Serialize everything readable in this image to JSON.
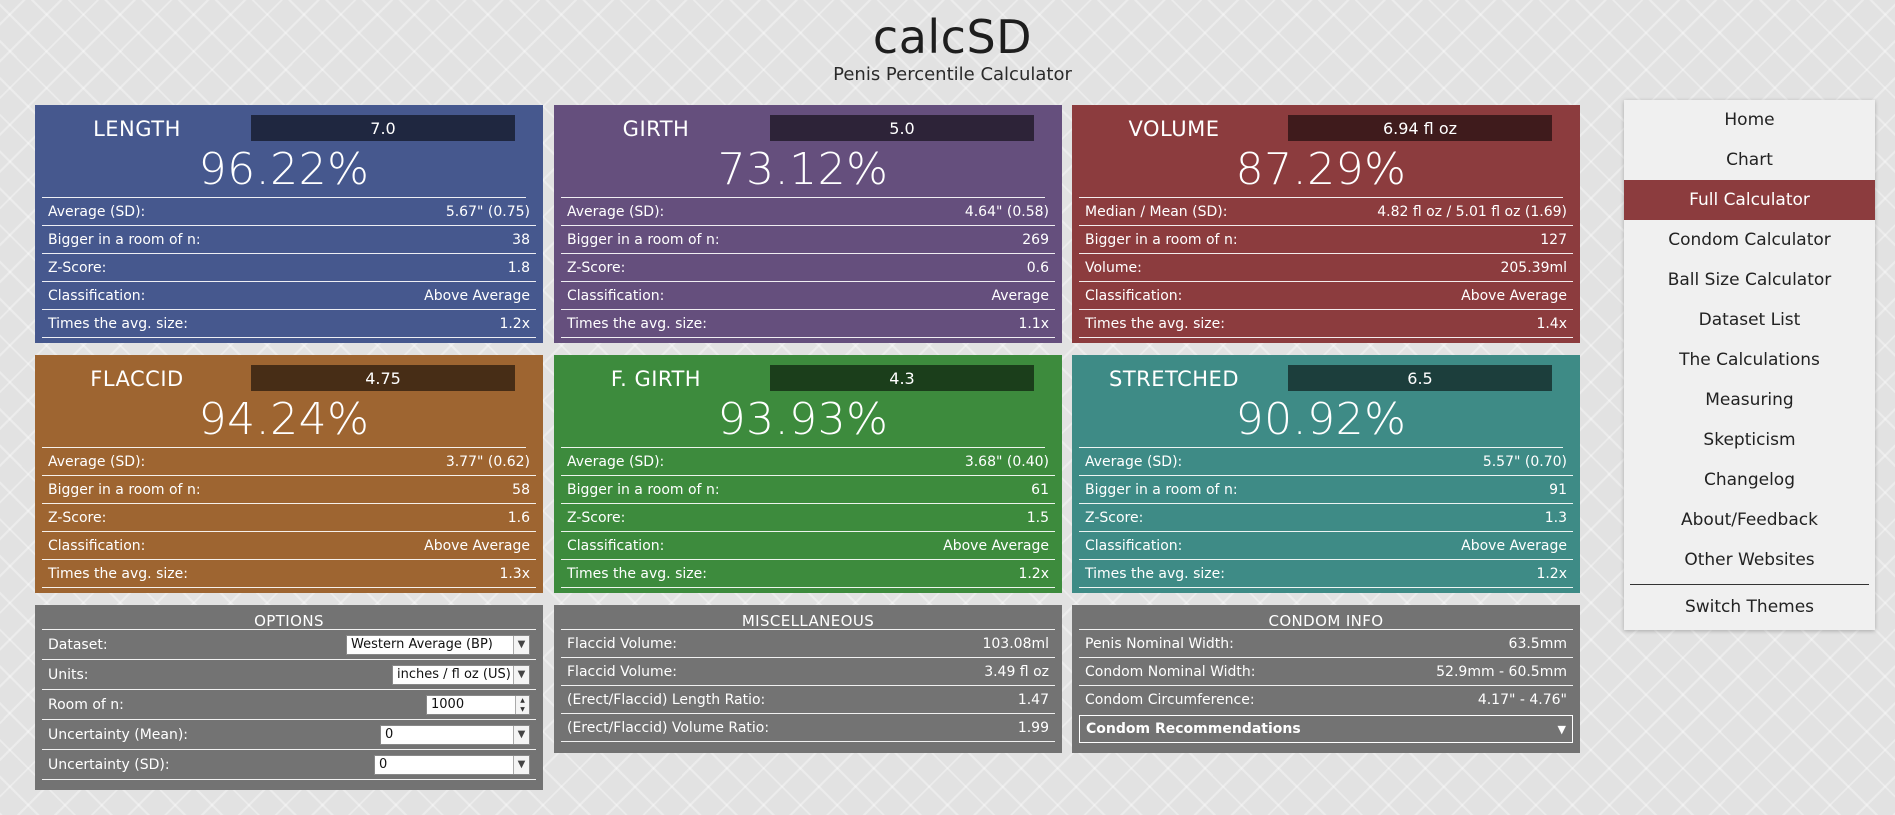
{
  "header": {
    "title": "calcSD",
    "subtitle": "Penis Percentile Calculator"
  },
  "cards": {
    "length": {
      "label": "LENGTH",
      "input": "7.0",
      "percentile": "96.22%",
      "rows": [
        {
          "label": "Average (SD):",
          "value": "5.67\" (0.75)"
        },
        {
          "label": "Bigger in a room of n:",
          "value": "38"
        },
        {
          "label": "Z-Score:",
          "value": "1.8"
        },
        {
          "label": "Classification:",
          "value": "Above Average"
        },
        {
          "label": "Times the avg. size:",
          "value": "1.2x"
        }
      ]
    },
    "girth": {
      "label": "GIRTH",
      "input": "5.0",
      "percentile": "73.12%",
      "rows": [
        {
          "label": "Average (SD):",
          "value": "4.64\" (0.58)"
        },
        {
          "label": "Bigger in a room of n:",
          "value": "269"
        },
        {
          "label": "Z-Score:",
          "value": "0.6"
        },
        {
          "label": "Classification:",
          "value": "Average"
        },
        {
          "label": "Times the avg. size:",
          "value": "1.1x"
        }
      ]
    },
    "volume": {
      "label": "VOLUME",
      "input": "6.94 fl oz",
      "percentile": "87.29%",
      "rows": [
        {
          "label": "Median / Mean (SD):",
          "value": "4.82 fl oz / 5.01 fl oz (1.69)"
        },
        {
          "label": "Bigger in a room of n:",
          "value": "127"
        },
        {
          "label": "Volume:",
          "value": "205.39ml"
        },
        {
          "label": "Classification:",
          "value": "Above Average"
        },
        {
          "label": "Times the avg. size:",
          "value": "1.4x"
        }
      ]
    },
    "flaccid": {
      "label": "FLACCID",
      "input": "4.75",
      "percentile": "94.24%",
      "rows": [
        {
          "label": "Average (SD):",
          "value": "3.77\" (0.62)"
        },
        {
          "label": "Bigger in a room of n:",
          "value": "58"
        },
        {
          "label": "Z-Score:",
          "value": "1.6"
        },
        {
          "label": "Classification:",
          "value": "Above Average"
        },
        {
          "label": "Times the avg. size:",
          "value": "1.3x"
        }
      ]
    },
    "fgirth": {
      "label": "F. GIRTH",
      "input": "4.3",
      "percentile": "93.93%",
      "rows": [
        {
          "label": "Average (SD):",
          "value": "3.68\" (0.40)"
        },
        {
          "label": "Bigger in a room of n:",
          "value": "61"
        },
        {
          "label": "Z-Score:",
          "value": "1.5"
        },
        {
          "label": "Classification:",
          "value": "Above Average"
        },
        {
          "label": "Times the avg. size:",
          "value": "1.2x"
        }
      ]
    },
    "stretched": {
      "label": "STRETCHED",
      "input": "6.5",
      "percentile": "90.92%",
      "rows": [
        {
          "label": "Average (SD):",
          "value": "5.57\" (0.70)"
        },
        {
          "label": "Bigger in a room of n:",
          "value": "91"
        },
        {
          "label": "Z-Score:",
          "value": "1.3"
        },
        {
          "label": "Classification:",
          "value": "Above Average"
        },
        {
          "label": "Times the avg. size:",
          "value": "1.2x"
        }
      ]
    }
  },
  "options": {
    "title": "OPTIONS",
    "dataset_label": "Dataset:",
    "dataset_value": "Western Average (BP)",
    "units_label": "Units:",
    "units_value": "inches / fl oz (US)",
    "room_label": "Room of n:",
    "room_value": "1000",
    "unc_mean_label": "Uncertainty (Mean):",
    "unc_mean_value": "0",
    "unc_sd_label": "Uncertainty (SD):",
    "unc_sd_value": "0"
  },
  "misc": {
    "title": "MISCELLANEOUS",
    "rows": [
      {
        "label": "Flaccid Volume:",
        "value": "103.08ml"
      },
      {
        "label": "Flaccid Volume:",
        "value": "3.49 fl oz"
      },
      {
        "label": "(Erect/Flaccid) Length Ratio:",
        "value": "1.47"
      },
      {
        "label": "(Erect/Flaccid) Volume Ratio:",
        "value": "1.99"
      }
    ]
  },
  "condom": {
    "title": "CONDOM INFO",
    "rows": [
      {
        "label": "Penis Nominal Width:",
        "value": "63.5mm"
      },
      {
        "label": "Condom Nominal Width:",
        "value": "52.9mm - 60.5mm"
      },
      {
        "label": "Condom Circumference:",
        "value": "4.17\" - 4.76\""
      }
    ],
    "recommendations": "Condom Recommendations"
  },
  "nav": {
    "items": [
      "Home",
      "Chart",
      "Full Calculator",
      "Condom Calculator",
      "Ball Size Calculator",
      "Dataset List",
      "The Calculations",
      "Measuring",
      "Skepticism",
      "Changelog",
      "About/Feedback",
      "Other Websites"
    ],
    "active": "Full Calculator",
    "switch_themes": "Switch Themes"
  },
  "colors": {
    "length": "#46588e",
    "girth": "#654f7d",
    "volume": "#8c3c3e",
    "flaccid": "#9e6531",
    "fgirth": "#3d8b3d",
    "stretched": "#3e8b86",
    "panel": "#737373",
    "nav_active": "#8c3c3e"
  }
}
